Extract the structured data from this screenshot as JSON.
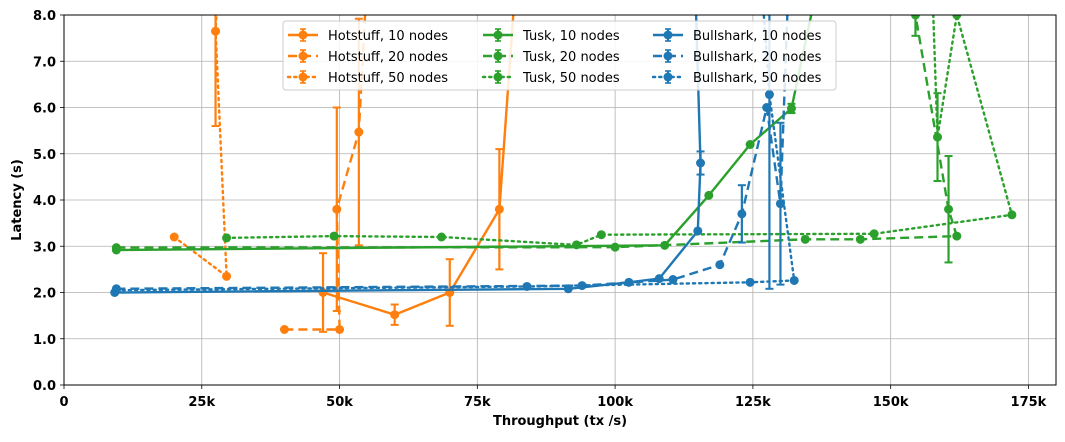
{
  "chart_data": {
    "type": "line",
    "title": "",
    "xlabel": "Throughput (tx /s)",
    "ylabel": "Latency (s)",
    "xlim": [
      0,
      180000
    ],
    "ylim": [
      0,
      8
    ],
    "xticks": [
      0,
      25000,
      50000,
      75000,
      100000,
      125000,
      150000,
      175000
    ],
    "xtick_labels": [
      "0",
      "25k",
      "50k",
      "75k",
      "100k",
      "125k",
      "150k",
      "175k"
    ],
    "yticks": [
      0,
      1,
      2,
      3,
      4,
      5,
      6,
      7,
      8
    ],
    "ytick_labels": [
      "0.0",
      "1.0",
      "2.0",
      "3.0",
      "4.0",
      "5.0",
      "6.0",
      "7.0",
      "8.0"
    ],
    "grid": true,
    "legend_placement": "top-center",
    "legend_columns": 3,
    "colors": {
      "Hotstuff": "#ff7f0e",
      "Tusk": "#2ca02c",
      "Bullshark": "#1f77b4"
    },
    "series": [
      {
        "name": "Hotstuff, 10 nodes",
        "family": "Hotstuff",
        "style": "solid",
        "x": [
          47000,
          60000,
          70000,
          79000,
          82000
        ],
        "y": [
          2.0,
          1.52,
          2.0,
          3.8,
          8.8
        ],
        "err": [
          0.85,
          0.22,
          0.72,
          1.3,
          0
        ]
      },
      {
        "name": "Hotstuff, 20 nodes",
        "family": "Hotstuff",
        "style": "dashed",
        "x": [
          40000,
          50000,
          49500,
          53500,
          55000
        ],
        "y": [
          1.2,
          1.2,
          3.8,
          5.47,
          8.8
        ],
        "err": [
          0,
          0,
          2.2,
          2.45,
          0
        ]
      },
      {
        "name": "Hotstuff, 50 nodes",
        "family": "Hotstuff",
        "style": "dotted",
        "x": [
          20000,
          29500,
          27500,
          28000
        ],
        "y": [
          3.2,
          2.35,
          7.65,
          8.8
        ],
        "err": [
          0,
          0,
          2.05,
          0
        ]
      },
      {
        "name": "Tusk, 10 nodes",
        "family": "Tusk",
        "style": "solid",
        "x": [
          9500,
          109000,
          117000,
          124500,
          132000,
          137000
        ],
        "y": [
          2.92,
          3.02,
          4.1,
          5.2,
          5.98,
          8.8
        ],
        "err": [
          0,
          0,
          0,
          0,
          0.1,
          0
        ]
      },
      {
        "name": "Tusk, 20 nodes",
        "family": "Tusk",
        "style": "dashed",
        "x": [
          9500,
          100000,
          134500,
          144500,
          162000,
          160500,
          154500
        ],
        "y": [
          2.97,
          2.98,
          3.15,
          3.15,
          3.22,
          3.8,
          8.0
        ],
        "err": [
          0,
          0,
          0,
          0,
          0,
          1.15,
          0.45
        ]
      },
      {
        "name": "Tusk, 50 nodes",
        "family": "Tusk",
        "style": "dotted",
        "x": [
          29500,
          49000,
          68500,
          93000,
          97500,
          147000,
          172000,
          162000,
          158500,
          157500
        ],
        "y": [
          3.18,
          3.22,
          3.2,
          3.03,
          3.25,
          3.27,
          3.68,
          8.0,
          5.36,
          8.8
        ],
        "err": [
          0,
          0,
          0,
          0,
          0,
          0,
          0,
          0,
          0.95,
          0
        ]
      },
      {
        "name": "Bullshark, 10 nodes",
        "family": "Bullshark",
        "style": "solid",
        "x": [
          9200,
          91500,
          102500,
          108000,
          115000,
          115500,
          114500
        ],
        "y": [
          2.0,
          2.08,
          2.22,
          2.3,
          3.33,
          4.8,
          8.8
        ],
        "err": [
          0,
          0,
          0,
          0,
          0,
          0.25,
          0
        ]
      },
      {
        "name": "Bullshark, 20 nodes",
        "family": "Bullshark",
        "style": "dashed",
        "x": [
          9500,
          94000,
          110500,
          119000,
          123000,
          127500,
          130000,
          131500
        ],
        "y": [
          2.08,
          2.15,
          2.28,
          2.6,
          3.7,
          6.0,
          3.92,
          8.8
        ],
        "err": [
          0,
          0,
          0,
          0,
          0.62,
          0,
          1.75,
          0
        ]
      },
      {
        "name": "Bullshark, 50 nodes",
        "family": "Bullshark",
        "style": "dotted",
        "x": [
          9500,
          84000,
          124500,
          132500,
          128000,
          126500
        ],
        "y": [
          2.05,
          2.13,
          2.22,
          2.26,
          6.28,
          8.8
        ],
        "err": [
          0,
          0,
          0,
          0,
          4.2,
          0
        ]
      }
    ]
  }
}
